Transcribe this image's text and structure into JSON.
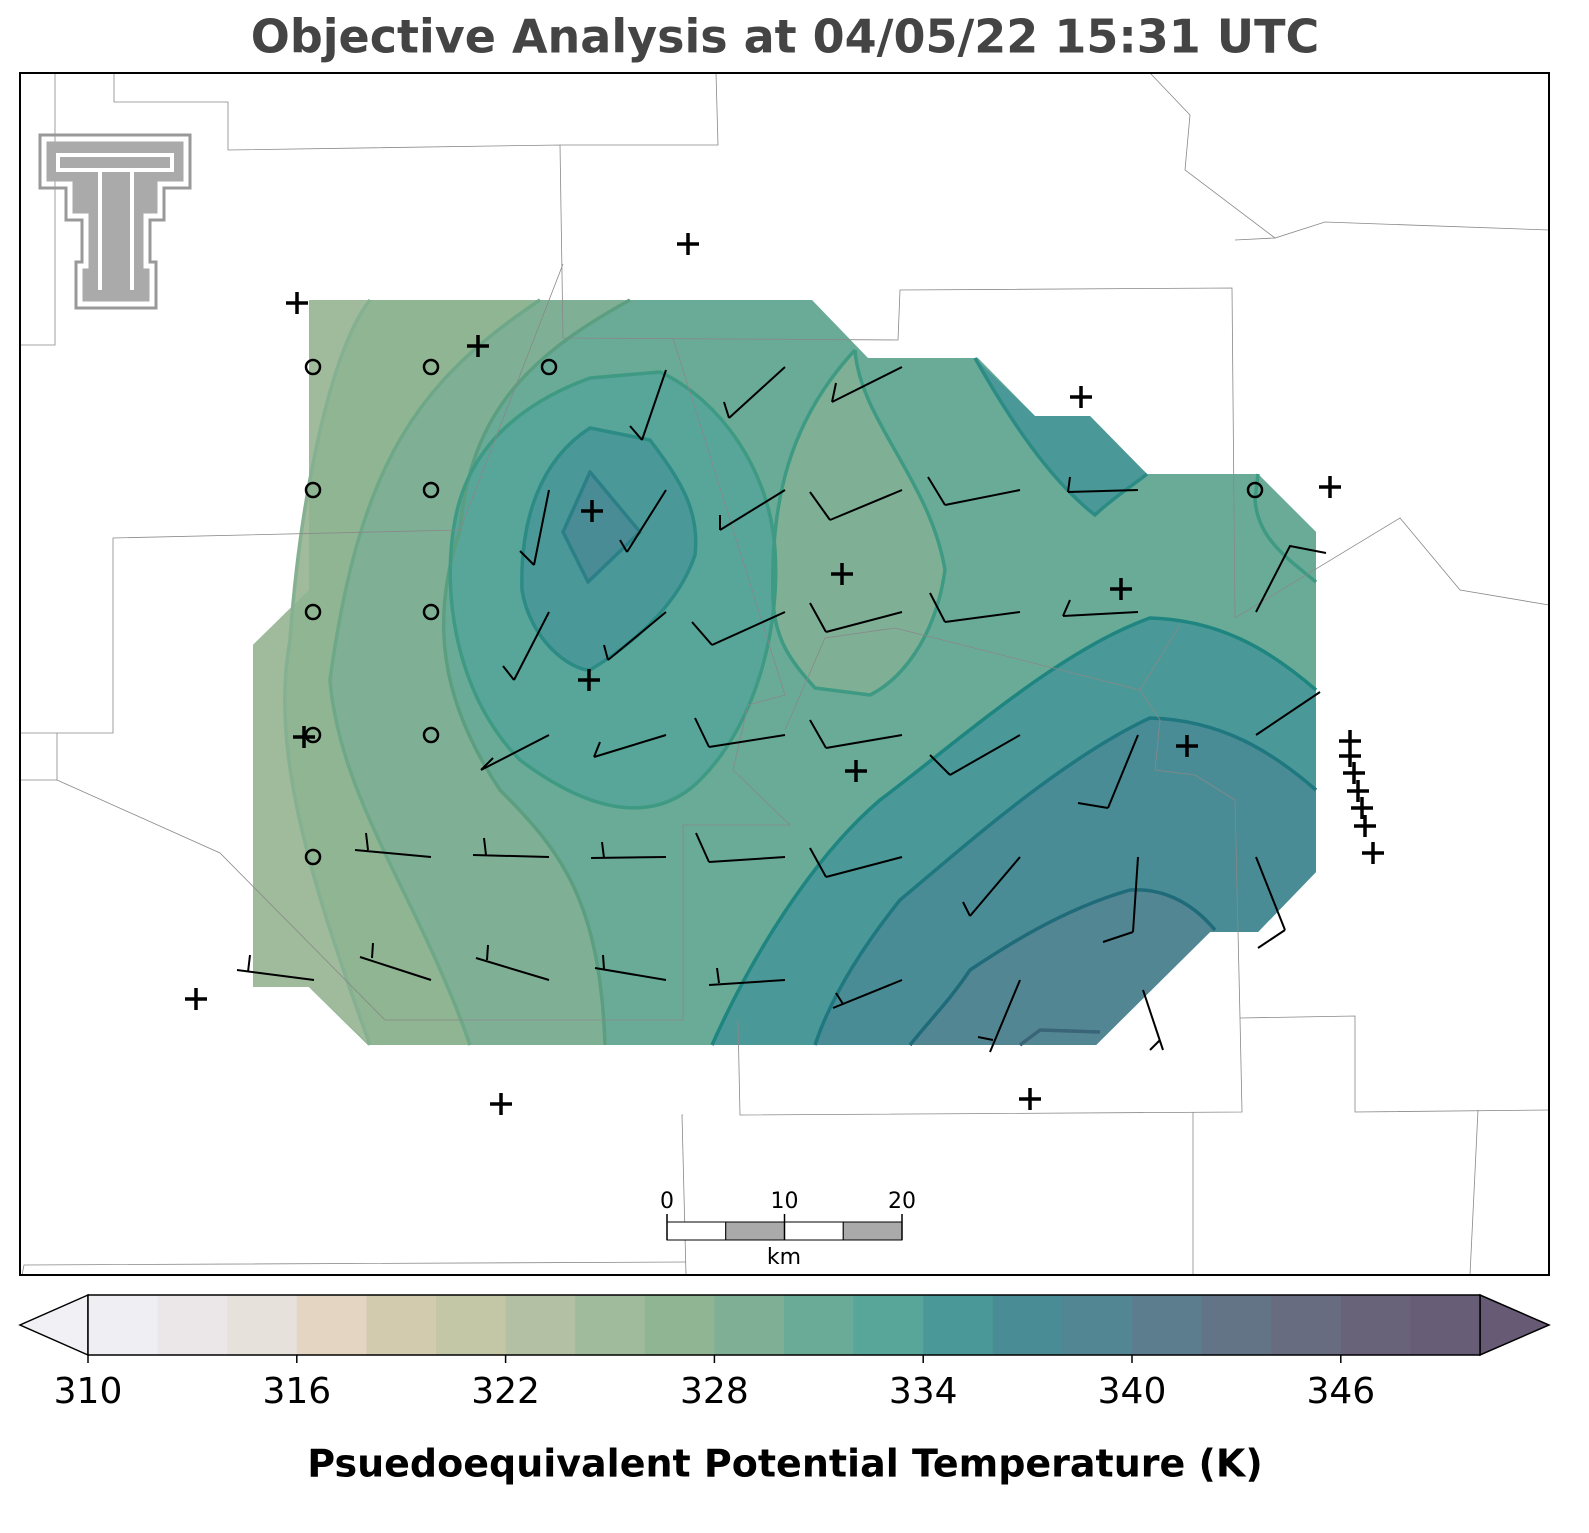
{
  "title": "Objective Analysis at 04/05/22 15:31 UTC",
  "colorbar": {
    "label": "Psuedoequivalent Potential Temperature (K)",
    "lim": [
      310,
      350
    ],
    "ticks": [
      310,
      316,
      322,
      328,
      334,
      340,
      346
    ],
    "colors": [
      "#efeef2",
      "#ebe7e8",
      "#e6e1da",
      "#e3d5c2",
      "#d2cbad",
      "#c4c7a6",
      "#b3c0a3",
      "#a0bb9c",
      "#8fb592",
      "#7fb096",
      "#6aab97",
      "#58a59a",
      "#4a9998",
      "#4a8c95",
      "#538693",
      "#5c7d8d",
      "#637486",
      "#676c80",
      "#696379",
      "#685d76"
    ],
    "extend_colors": [
      "#f1f0f5",
      "#665a75"
    ]
  },
  "scale_bar": {
    "ticks": [
      0,
      10,
      20
    ],
    "unit": "km"
  }
}
